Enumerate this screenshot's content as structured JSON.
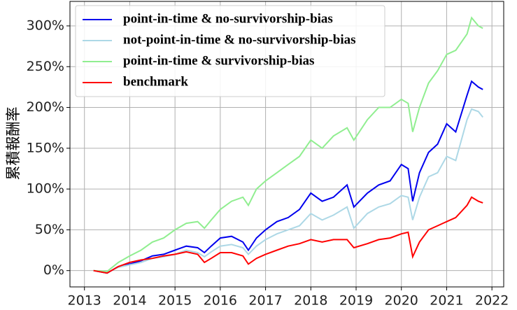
{
  "chart_data": {
    "type": "line",
    "y_label": "累積報酬率",
    "x": [
      2013.2,
      2013.5,
      2013.75,
      2014,
      2014.25,
      2014.5,
      2014.75,
      2015,
      2015.25,
      2015.5,
      2015.65,
      2015.8,
      2016,
      2016.25,
      2016.5,
      2016.62,
      2016.8,
      2017,
      2017.25,
      2017.5,
      2017.75,
      2018,
      2018.25,
      2018.5,
      2018.8,
      2018.95,
      2019.25,
      2019.5,
      2019.75,
      2020,
      2020.15,
      2020.25,
      2020.4,
      2020.6,
      2020.8,
      2021,
      2021.2,
      2021.45,
      2021.55,
      2021.7,
      2021.8
    ],
    "series": [
      {
        "name": "point-in-time & no-survivorship-bias",
        "color": "#0000ee",
        "values": [
          0,
          -3,
          5,
          8,
          12,
          18,
          20,
          25,
          30,
          28,
          22,
          30,
          40,
          42,
          35,
          25,
          40,
          50,
          60,
          65,
          75,
          95,
          85,
          90,
          105,
          78,
          95,
          105,
          110,
          130,
          125,
          85,
          120,
          145,
          155,
          180,
          170,
          215,
          232,
          225,
          222
        ]
      },
      {
        "name": "not-point-in-time & no-survivorship-bias",
        "color": "#add8e6",
        "values": [
          0,
          -2,
          4,
          7,
          10,
          15,
          17,
          20,
          25,
          22,
          17,
          23,
          30,
          32,
          28,
          20,
          30,
          38,
          45,
          50,
          55,
          70,
          62,
          68,
          78,
          52,
          70,
          78,
          82,
          92,
          90,
          62,
          90,
          115,
          120,
          140,
          135,
          185,
          198,
          195,
          188
        ]
      },
      {
        "name": "point-in-time & survivorship-bias",
        "color": "#90ee90",
        "values": [
          0,
          -1,
          10,
          18,
          25,
          35,
          40,
          50,
          58,
          60,
          52,
          62,
          75,
          85,
          90,
          80,
          100,
          110,
          120,
          130,
          140,
          160,
          150,
          165,
          175,
          160,
          185,
          200,
          200,
          210,
          205,
          170,
          200,
          230,
          245,
          265,
          270,
          290,
          310,
          300,
          297
        ]
      },
      {
        "name": "benchmark",
        "color": "#ff0000",
        "values": [
          0,
          -3,
          5,
          10,
          13,
          15,
          18,
          20,
          23,
          20,
          10,
          15,
          22,
          22,
          18,
          8,
          15,
          20,
          25,
          30,
          33,
          38,
          35,
          38,
          38,
          28,
          33,
          38,
          40,
          45,
          47,
          17,
          35,
          50,
          55,
          60,
          65,
          80,
          90,
          85,
          83
        ]
      }
    ],
    "xlim": [
      2012.68,
      2022.26
    ],
    "xticks": [
      2013,
      2014,
      2015,
      2016,
      2017,
      2018,
      2019,
      2020,
      2021,
      2022
    ],
    "ylim": [
      -20,
      330
    ],
    "yticks": [
      {
        "value": 0,
        "label": "0%"
      },
      {
        "value": 50,
        "label": "50%"
      },
      {
        "value": 100,
        "label": "100%"
      },
      {
        "value": 150,
        "label": "150%"
      },
      {
        "value": 200,
        "label": "200%"
      },
      {
        "value": 250,
        "label": "250%"
      },
      {
        "value": 300,
        "label": "300%"
      }
    ],
    "grid": true,
    "legend": "upper left"
  }
}
